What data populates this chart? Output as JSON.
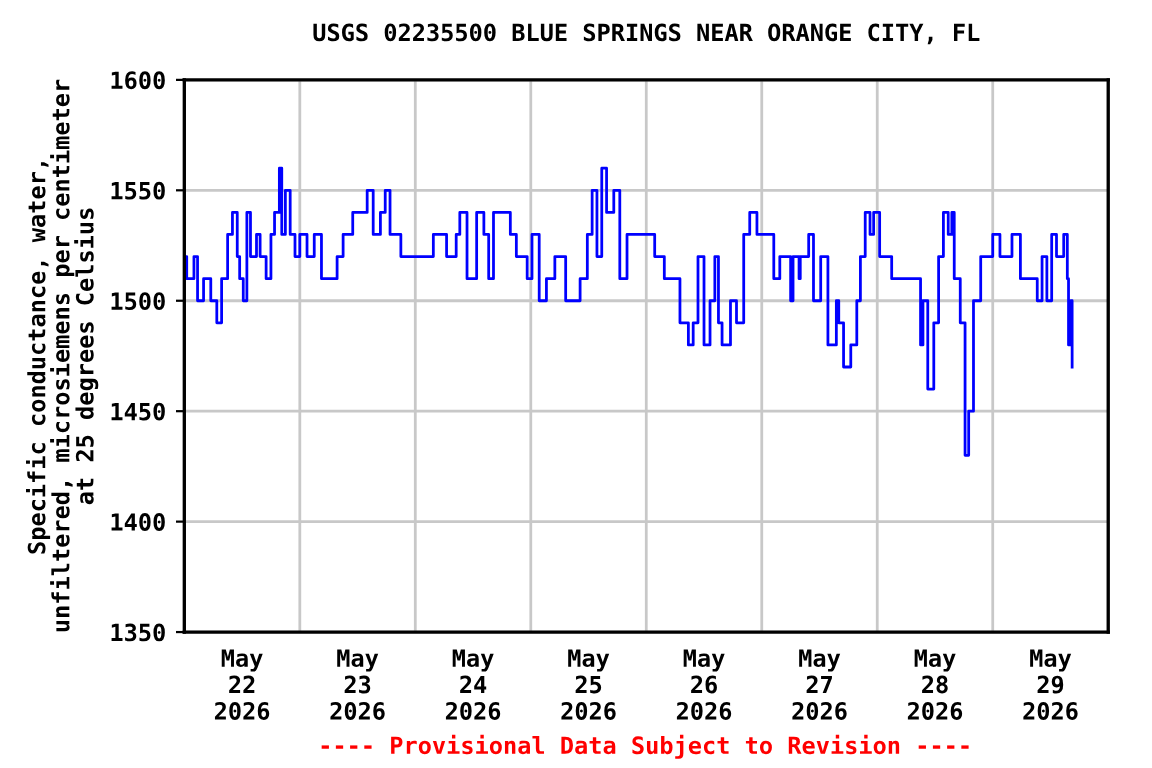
{
  "chart_data": {
    "type": "step",
    "title": "USGS 02235500 BLUE SPRINGS NEAR ORANGE CITY, FL",
    "ylabel": "Specific conductance, water,\nunfiltered, microsiemens per centimeter\nat 25 degrees Celsius",
    "annotations": [
      "---- Provisional Data Subject to Revision ----"
    ],
    "xlim": [
      "2026-05-22T00:00",
      "2026-05-30T00:00"
    ],
    "xticks": [
      {
        "value": "2026-05-22T12:00",
        "label": "May\n22\n2026"
      },
      {
        "value": "2026-05-23T00:00",
        "label": null
      },
      {
        "value": "2026-05-23T12:00",
        "label": "May\n23\n2026"
      },
      {
        "value": "2026-05-24T00:00",
        "label": null
      },
      {
        "value": "2026-05-24T12:00",
        "label": "May\n24\n2026"
      },
      {
        "value": "2026-05-25T00:00",
        "label": null
      },
      {
        "value": "2026-05-25T12:00",
        "label": "May\n25\n2026"
      },
      {
        "value": "2026-05-26T00:00",
        "label": null
      },
      {
        "value": "2026-05-26T12:00",
        "label": "May\n26\n2026"
      },
      {
        "value": "2026-05-27T00:00",
        "label": null
      },
      {
        "value": "2026-05-27T12:00",
        "label": "May\n27\n2026"
      },
      {
        "value": "2026-05-28T00:00",
        "label": null
      },
      {
        "value": "2026-05-28T12:00",
        "label": "May\n28\n2026"
      },
      {
        "value": "2026-05-29T00:00",
        "label": null
      },
      {
        "value": "2026-05-29T12:00",
        "label": "May\n29\n2026"
      }
    ],
    "ylim": [
      1350,
      1600
    ],
    "yticks": [
      1350,
      1400,
      1450,
      1500,
      1550,
      1600
    ],
    "grid": true,
    "series": [
      {
        "color": "#0000ff",
        "x": [
          "2026-05-22T00:00",
          "2026-05-22T00:30",
          "2026-05-22T02:00",
          "2026-05-22T02:45",
          "2026-05-22T04:00",
          "2026-05-22T05:30",
          "2026-05-22T06:45",
          "2026-05-22T07:45",
          "2026-05-22T09:00",
          "2026-05-22T10:00",
          "2026-05-22T11:00",
          "2026-05-22T11:30",
          "2026-05-22T12:15",
          "2026-05-22T13:00",
          "2026-05-22T13:45",
          "2026-05-22T15:00",
          "2026-05-22T15:45",
          "2026-05-22T17:00",
          "2026-05-22T18:00",
          "2026-05-22T18:45",
          "2026-05-22T19:45",
          "2026-05-22T20:15",
          "2026-05-22T21:00",
          "2026-05-22T22:00",
          "2026-05-22T23:00",
          "2026-05-23T00:00",
          "2026-05-23T01:30",
          "2026-05-23T03:00",
          "2026-05-23T04:30",
          "2026-05-23T06:00",
          "2026-05-23T07:45",
          "2026-05-23T09:00",
          "2026-05-23T11:00",
          "2026-05-23T12:30",
          "2026-05-23T14:00",
          "2026-05-23T15:15",
          "2026-05-23T16:45",
          "2026-05-23T17:45",
          "2026-05-23T18:45",
          "2026-05-23T21:00",
          "2026-05-23T23:00",
          "2026-05-24T01:00",
          "2026-05-24T03:45",
          "2026-05-24T06:30",
          "2026-05-24T08:30",
          "2026-05-24T09:15",
          "2026-05-24T10:45",
          "2026-05-24T12:45",
          "2026-05-24T14:15",
          "2026-05-24T15:15",
          "2026-05-24T16:15",
          "2026-05-24T17:15",
          "2026-05-24T19:45",
          "2026-05-24T21:00",
          "2026-05-24T23:15",
          "2026-05-25T00:15",
          "2026-05-25T01:45",
          "2026-05-25T03:15",
          "2026-05-25T05:00",
          "2026-05-25T07:15",
          "2026-05-25T09:00",
          "2026-05-25T10:15",
          "2026-05-25T11:45",
          "2026-05-25T12:45",
          "2026-05-25T13:45",
          "2026-05-25T14:45",
          "2026-05-25T15:45",
          "2026-05-25T17:15",
          "2026-05-25T18:30",
          "2026-05-25T20:00",
          "2026-05-25T22:45",
          "2026-05-26T00:15",
          "2026-05-26T01:45",
          "2026-05-26T03:45",
          "2026-05-26T05:45",
          "2026-05-26T07:00",
          "2026-05-26T08:45",
          "2026-05-26T09:45",
          "2026-05-26T10:45",
          "2026-05-26T12:00",
          "2026-05-26T13:15",
          "2026-05-26T14:15",
          "2026-05-26T15:00",
          "2026-05-26T15:45",
          "2026-05-26T17:30",
          "2026-05-26T18:45",
          "2026-05-26T20:15",
          "2026-05-26T21:30",
          "2026-05-26T23:00",
          "2026-05-27T00:30",
          "2026-05-27T02:30",
          "2026-05-27T03:45",
          "2026-05-27T06:00",
          "2026-05-27T06:30",
          "2026-05-27T07:45",
          "2026-05-27T08:00",
          "2026-05-27T09:45",
          "2026-05-27T10:45",
          "2026-05-27T12:15",
          "2026-05-27T13:45",
          "2026-05-27T15:30",
          "2026-05-27T16:00",
          "2026-05-27T17:00",
          "2026-05-27T18:30",
          "2026-05-27T19:45",
          "2026-05-27T20:30",
          "2026-05-27T21:30",
          "2026-05-27T22:30",
          "2026-05-27T23:15",
          "2026-05-28T00:30",
          "2026-05-28T02:00",
          "2026-05-28T03:00",
          "2026-05-28T08:15",
          "2026-05-28T09:00",
          "2026-05-28T09:30",
          "2026-05-28T10:30",
          "2026-05-28T11:45",
          "2026-05-28T12:45",
          "2026-05-28T13:45",
          "2026-05-28T14:45",
          "2026-05-28T15:30",
          "2026-05-28T16:00",
          "2026-05-28T17:15",
          "2026-05-28T18:15",
          "2026-05-28T19:00",
          "2026-05-28T20:00",
          "2026-05-28T21:30",
          "2026-05-29T00:00",
          "2026-05-29T01:30",
          "2026-05-29T03:00",
          "2026-05-29T04:00",
          "2026-05-29T05:45",
          "2026-05-29T08:15",
          "2026-05-29T09:15",
          "2026-05-29T10:15",
          "2026-05-29T11:15",
          "2026-05-29T12:15",
          "2026-05-29T13:15",
          "2026-05-29T14:45",
          "2026-05-29T15:30",
          "2026-05-29T15:45",
          "2026-05-29T16:15",
          "2026-05-29T16:30"
        ],
        "values": [
          1520,
          1510,
          1520,
          1500,
          1510,
          1500,
          1490,
          1510,
          1530,
          1540,
          1520,
          1510,
          1500,
          1540,
          1520,
          1530,
          1520,
          1510,
          1530,
          1540,
          1560,
          1530,
          1550,
          1530,
          1520,
          1530,
          1520,
          1530,
          1510,
          1510,
          1520,
          1530,
          1540,
          1540,
          1550,
          1530,
          1540,
          1550,
          1530,
          1520,
          1520,
          1520,
          1530,
          1520,
          1530,
          1540,
          1510,
          1540,
          1530,
          1510,
          1540,
          1540,
          1530,
          1520,
          1510,
          1530,
          1500,
          1510,
          1520,
          1500,
          1500,
          1510,
          1530,
          1550,
          1520,
          1560,
          1540,
          1550,
          1510,
          1530,
          1530,
          1530,
          1520,
          1510,
          1510,
          1490,
          1480,
          1490,
          1520,
          1480,
          1500,
          1520,
          1490,
          1480,
          1500,
          1490,
          1530,
          1540,
          1530,
          1530,
          1510,
          1520,
          1500,
          1520,
          1510,
          1520,
          1530,
          1500,
          1520,
          1480,
          1500,
          1490,
          1470,
          1480,
          1500,
          1520,
          1540,
          1530,
          1540,
          1520,
          1520,
          1510,
          1510,
          1480,
          1500,
          1460,
          1490,
          1520,
          1540,
          1530,
          1540,
          1510,
          1490,
          1430,
          1450,
          1500,
          1520,
          1530,
          1520,
          1520,
          1530,
          1510,
          1510,
          1500,
          1520,
          1500,
          1530,
          1520,
          1530,
          1510,
          1480,
          1500,
          1470
        ]
      }
    ]
  }
}
